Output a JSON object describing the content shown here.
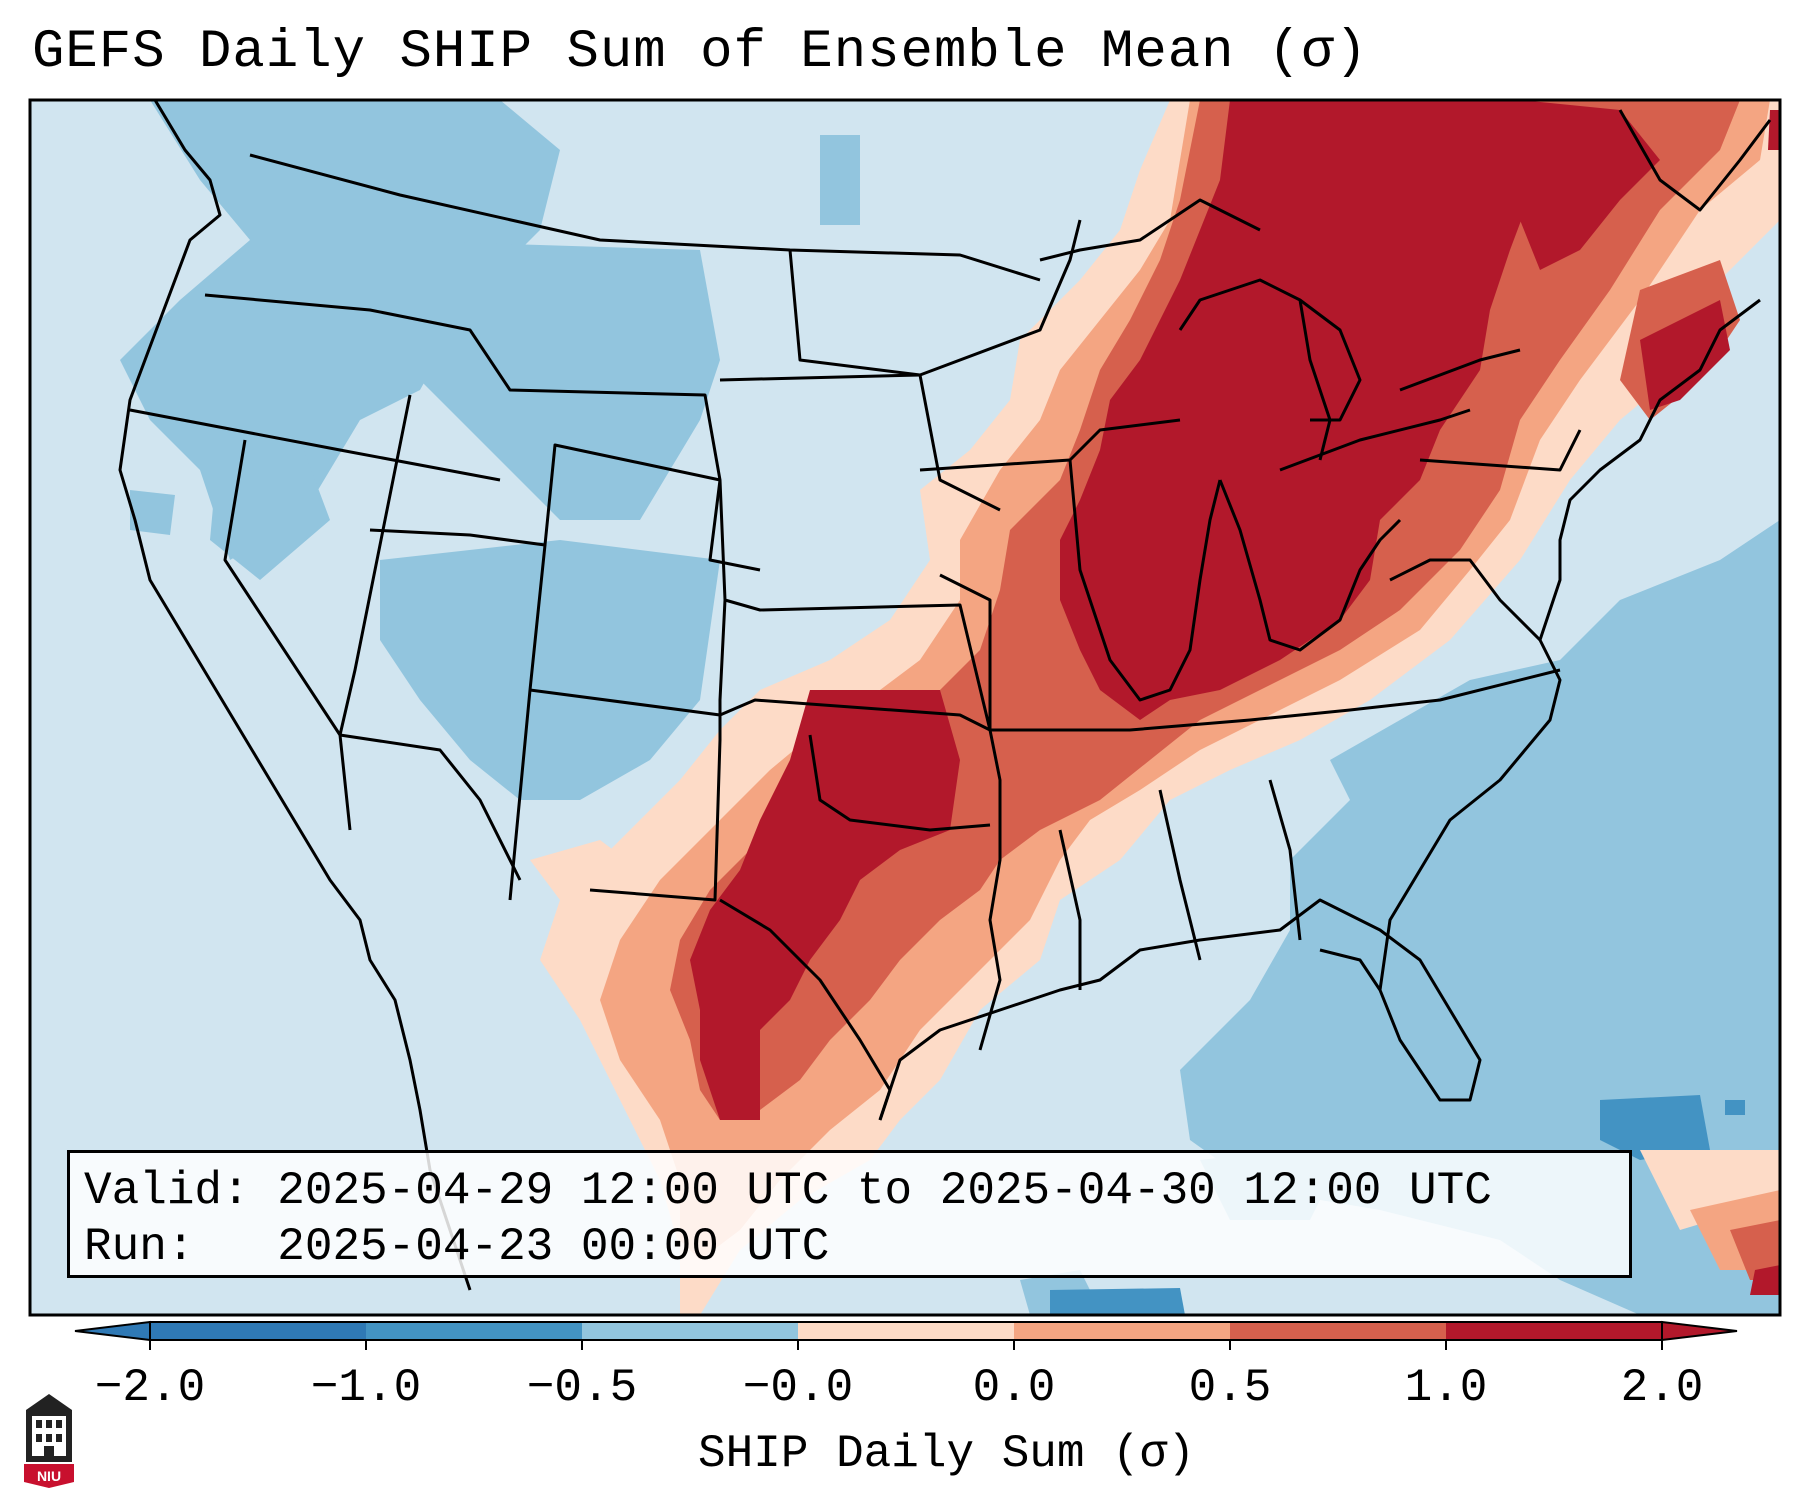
{
  "title": "GEFS Daily SHIP Sum of Ensemble Mean (σ)",
  "info": {
    "valid": "Valid: 2025-04-29 12:00 UTC to 2025-04-30 12:00 UTC",
    "run": "Run:   2025-04-23 00:00 UTC"
  },
  "colorbar": {
    "label": "SHIP Daily Sum (σ)",
    "ticks": [
      "−2.0",
      "−1.0",
      "−0.5",
      "−0.0",
      "0.0",
      "0.5",
      "1.0",
      "2.0"
    ],
    "colors": [
      "#2f79b5",
      "#4393c3",
      "#92c5de",
      "#d1e5f0",
      "#fddbc7",
      "#f4a582",
      "#d6604d",
      "#b2182b"
    ],
    "extend": "both"
  },
  "logo": {
    "text": "NIU",
    "color": "#c8102e"
  }
}
